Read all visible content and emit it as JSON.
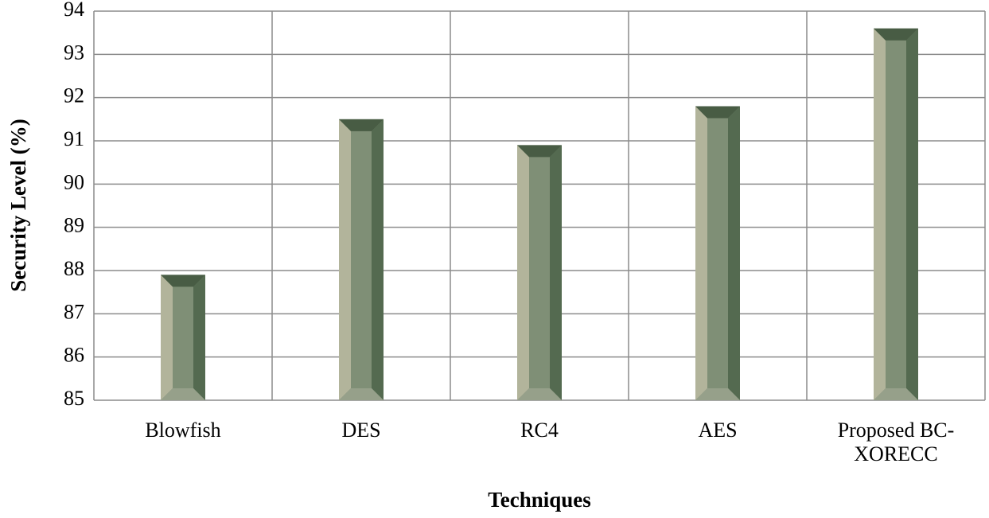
{
  "chart_data": {
    "type": "bar",
    "x_label": "Techniques",
    "y_label": "Security Level (%)",
    "categories": [
      "Blowfish",
      "DES",
      "RC4",
      "AES",
      "Proposed BC-XORECC"
    ],
    "values": [
      87.9,
      91.5,
      90.9,
      91.8,
      93.6
    ],
    "color": "#7f8f76",
    "ylim": [
      85,
      94
    ],
    "yticks": [
      85,
      86,
      87,
      88,
      89,
      90,
      91,
      92,
      93,
      94
    ],
    "grid": true
  }
}
